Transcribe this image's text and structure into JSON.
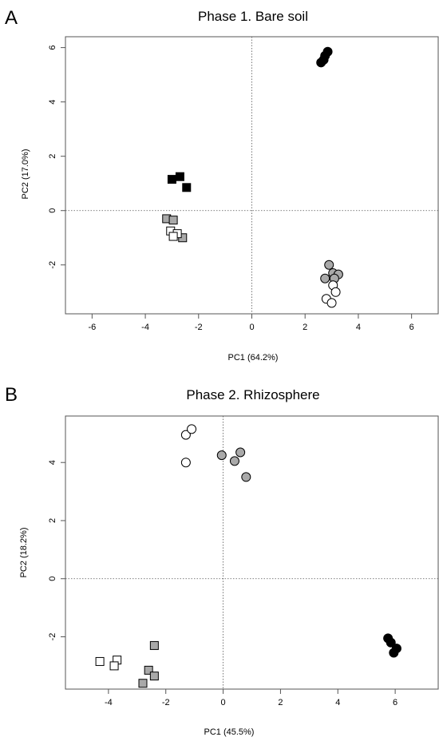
{
  "chart_data": [
    {
      "type": "scatter",
      "panel": "A",
      "title": "Phase 1. Bare soil",
      "xlabel": "PC1 (64.2%)",
      "ylabel": "PC2 (17.0%)",
      "xlim": [
        -7,
        7
      ],
      "ylim": [
        -3.8,
        6.4
      ],
      "xticks": [
        -6,
        -4,
        -2,
        0,
        2,
        4,
        6
      ],
      "yticks": [
        -2,
        0,
        2,
        4,
        6
      ],
      "reference_lines": {
        "x": 0,
        "y": 0,
        "style": "dotted"
      },
      "grid": false,
      "series": [
        {
          "marker": "circle",
          "fill": "#000000",
          "points": [
            [
              2.85,
              5.85
            ],
            [
              2.75,
              5.7
            ],
            [
              2.7,
              5.55
            ],
            [
              2.6,
              5.45
            ]
          ]
        },
        {
          "marker": "circle",
          "fill": "#a9a9a9",
          "points": [
            [
              2.9,
              -2.0
            ],
            [
              3.05,
              -2.3
            ],
            [
              3.25,
              -2.35
            ],
            [
              2.75,
              -2.5
            ],
            [
              3.1,
              -2.5
            ]
          ]
        },
        {
          "marker": "circle",
          "fill": "#ffffff",
          "points": [
            [
              3.05,
              -2.75
            ],
            [
              3.15,
              -3.0
            ],
            [
              2.8,
              -3.25
            ],
            [
              3.0,
              -3.4
            ]
          ]
        },
        {
          "marker": "square",
          "fill": "#000000",
          "points": [
            [
              -3.0,
              1.15
            ],
            [
              -2.7,
              1.25
            ],
            [
              -2.45,
              0.85
            ]
          ]
        },
        {
          "marker": "square",
          "fill": "#a9a9a9",
          "points": [
            [
              -3.2,
              -0.3
            ],
            [
              -2.95,
              -0.35
            ],
            [
              -2.6,
              -1.0
            ]
          ]
        },
        {
          "marker": "square",
          "fill": "#ffffff",
          "points": [
            [
              -3.05,
              -0.75
            ],
            [
              -2.8,
              -0.85
            ],
            [
              -2.95,
              -0.95
            ]
          ]
        }
      ]
    },
    {
      "type": "scatter",
      "panel": "B",
      "title": "Phase 2. Rhizosphere",
      "xlabel": "PC1 (45.5%)",
      "ylabel": "PC2 (18.2%)",
      "xlim": [
        -5.5,
        7.5
      ],
      "ylim": [
        -3.8,
        5.6
      ],
      "xticks": [
        -4,
        -2,
        0,
        2,
        4,
        6
      ],
      "yticks": [
        -2,
        0,
        2,
        4
      ],
      "reference_lines": {
        "x": 0,
        "y": 0,
        "style": "dotted"
      },
      "grid": false,
      "series": [
        {
          "marker": "circle",
          "fill": "#ffffff",
          "points": [
            [
              -1.3,
              4.0
            ],
            [
              -1.3,
              4.95
            ],
            [
              -1.1,
              5.15
            ]
          ]
        },
        {
          "marker": "circle",
          "fill": "#a9a9a9",
          "points": [
            [
              -0.05,
              4.25
            ],
            [
              0.4,
              4.05
            ],
            [
              0.6,
              4.35
            ],
            [
              0.8,
              3.5
            ]
          ]
        },
        {
          "marker": "circle",
          "fill": "#000000",
          "points": [
            [
              5.75,
              -2.05
            ],
            [
              5.85,
              -2.2
            ],
            [
              6.05,
              -2.4
            ],
            [
              5.95,
              -2.55
            ]
          ]
        },
        {
          "marker": "square",
          "fill": "#ffffff",
          "points": [
            [
              -4.3,
              -2.85
            ],
            [
              -3.7,
              -2.8
            ],
            [
              -3.8,
              -3.0
            ]
          ]
        },
        {
          "marker": "square",
          "fill": "#a9a9a9",
          "points": [
            [
              -2.4,
              -2.3
            ],
            [
              -2.6,
              -3.15
            ],
            [
              -2.4,
              -3.35
            ],
            [
              -2.8,
              -3.6
            ]
          ]
        }
      ]
    }
  ]
}
